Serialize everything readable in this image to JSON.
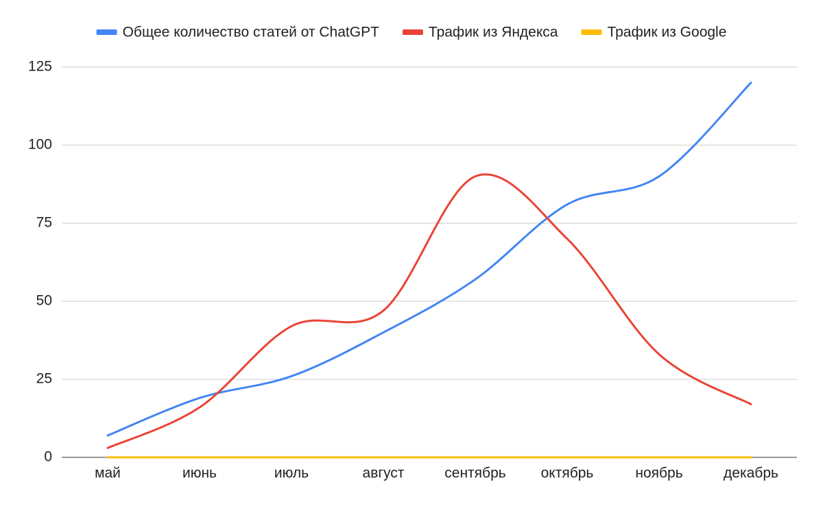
{
  "chart_data": {
    "type": "line",
    "categories": [
      "май",
      "июнь",
      "июль",
      "август",
      "сентябрь",
      "октябрь",
      "ноябрь",
      "декабрь"
    ],
    "series": [
      {
        "name": "Общее количество статей от ChatGPT",
        "color": "#4285f4",
        "values": [
          7,
          19,
          26,
          40,
          57,
          81,
          90,
          120
        ]
      },
      {
        "name": "Трафик из Яндекса",
        "color": "#ea4335",
        "values": [
          3,
          16,
          42,
          47,
          90,
          70,
          33,
          17
        ]
      },
      {
        "name": "Трафик из Google",
        "color": "#fbbc04",
        "values": [
          0,
          0,
          0,
          0,
          0,
          0,
          0,
          0
        ]
      }
    ],
    "ylim": [
      0,
      125
    ],
    "yticks": [
      0,
      25,
      50,
      75,
      100,
      125
    ],
    "grid": true,
    "legend": "top",
    "smooth": true
  }
}
